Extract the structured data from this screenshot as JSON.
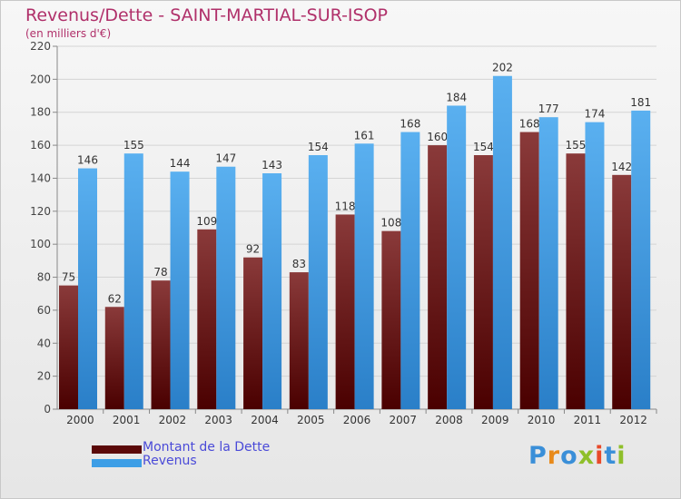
{
  "chart_data": {
    "type": "bar",
    "title": "Revenus/Dette - SAINT-MARTIAL-SUR-ISOP",
    "subtitle": "(en milliers d'€)",
    "categories": [
      "2000",
      "2001",
      "2002",
      "2003",
      "2004",
      "2005",
      "2006",
      "2007",
      "2008",
      "2009",
      "2010",
      "2011",
      "2012"
    ],
    "series": [
      {
        "name": "Montant de la Dette",
        "color": "#7a1010",
        "values": [
          75,
          62,
          78,
          109,
          92,
          83,
          118,
          108,
          160,
          154,
          168,
          155,
          142
        ]
      },
      {
        "name": "Revenus",
        "color": "#3d9ee6",
        "values": [
          146,
          155,
          144,
          147,
          143,
          154,
          161,
          168,
          184,
          202,
          177,
          174,
          181
        ]
      }
    ],
    "ylim": [
      0,
      220
    ],
    "yticks": [
      0,
      20,
      40,
      60,
      80,
      100,
      120,
      140,
      160,
      180,
      200,
      220
    ],
    "grid": true,
    "data_labels": true,
    "legend_position": "bottom-left"
  },
  "logo_text": "Proxiti"
}
